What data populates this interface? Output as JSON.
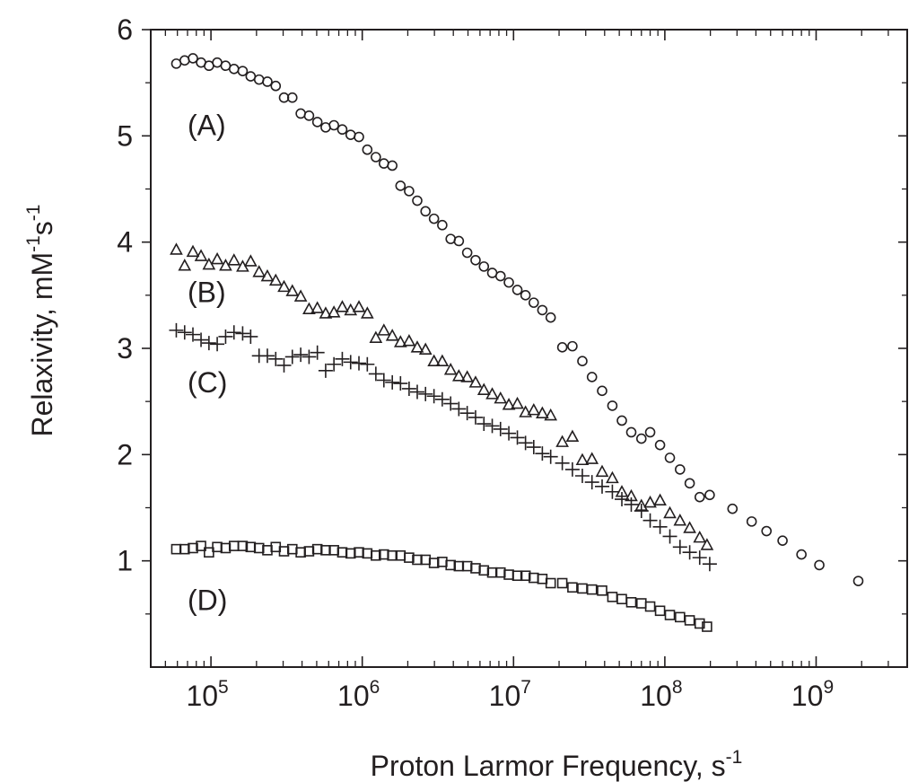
{
  "chart_data": {
    "type": "scatter",
    "x_scale": "log",
    "xlabel": "Proton Larmor Frequency, s",
    "xlabel_sup": "-1",
    "ylabel": "Relaxivity, mM",
    "ylabel_sup1": "-1",
    "ylabel_mid": "s",
    "ylabel_sup2": "-1",
    "xlim": [
      40000,
      4000000000
    ],
    "ylim": [
      0,
      6
    ],
    "x_ticks": [
      {
        "value": 100000,
        "base": "10",
        "exp": "5"
      },
      {
        "value": 1000000,
        "base": "10",
        "exp": "6"
      },
      {
        "value": 10000000,
        "base": "10",
        "exp": "7"
      },
      {
        "value": 100000000,
        "base": "10",
        "exp": "8"
      },
      {
        "value": 1000000000,
        "base": "10",
        "exp": "9"
      }
    ],
    "y_ticks": [
      {
        "value": 1,
        "label": "1"
      },
      {
        "value": 2,
        "label": "2"
      },
      {
        "value": 3,
        "label": "3"
      },
      {
        "value": 4,
        "label": "4"
      },
      {
        "value": 5,
        "label": "5"
      },
      {
        "value": 6,
        "label": "6"
      }
    ],
    "grid": false,
    "series": [
      {
        "name": "(A)",
        "marker": "circle",
        "label_at": [
          70000,
          5.1
        ],
        "points": [
          [
            59000,
            5.68
          ],
          [
            67000,
            5.71
          ],
          [
            76000,
            5.73
          ],
          [
            86000,
            5.69
          ],
          [
            97000,
            5.66
          ],
          [
            110000,
            5.69
          ],
          [
            125000,
            5.66
          ],
          [
            142000,
            5.63
          ],
          [
            162000,
            5.61
          ],
          [
            183000,
            5.56
          ],
          [
            208000,
            5.53
          ],
          [
            236000,
            5.51
          ],
          [
            268000,
            5.47
          ],
          [
            304000,
            5.36
          ],
          [
            345000,
            5.36
          ],
          [
            392000,
            5.21
          ],
          [
            445000,
            5.19
          ],
          [
            505000,
            5.13
          ],
          [
            573000,
            5.08
          ],
          [
            650000,
            5.1
          ],
          [
            738000,
            5.06
          ],
          [
            838000,
            5.01
          ],
          [
            951000,
            4.99
          ],
          [
            1080000,
            4.87
          ],
          [
            1230000,
            4.8
          ],
          [
            1390000,
            4.74
          ],
          [
            1580000,
            4.72
          ],
          [
            1790000,
            4.53
          ],
          [
            2040000,
            4.48
          ],
          [
            2310000,
            4.39
          ],
          [
            2620000,
            4.29
          ],
          [
            2980000,
            4.22
          ],
          [
            3380000,
            4.16
          ],
          [
            3840000,
            4.03
          ],
          [
            4350000,
            4.01
          ],
          [
            4940000,
            3.9
          ],
          [
            5610000,
            3.83
          ],
          [
            6370000,
            3.77
          ],
          [
            7230000,
            3.71
          ],
          [
            8200000,
            3.68
          ],
          [
            9310000,
            3.62
          ],
          [
            10600000,
            3.55
          ],
          [
            12000000,
            3.5
          ],
          [
            13600000,
            3.43
          ],
          [
            15500000,
            3.36
          ],
          [
            17600000,
            3.29
          ],
          [
            21000000,
            3.01
          ],
          [
            24500000,
            3.02
          ],
          [
            28500000,
            2.88
          ],
          [
            33000000,
            2.73
          ],
          [
            38500000,
            2.6
          ],
          [
            45000000,
            2.46
          ],
          [
            52000000,
            2.32
          ],
          [
            60000000,
            2.21
          ],
          [
            70000000,
            2.15
          ],
          [
            80000000,
            2.21
          ],
          [
            93000000,
            2.09
          ],
          [
            108000000,
            1.97
          ],
          [
            126000000,
            1.86
          ],
          [
            146000000,
            1.73
          ],
          [
            170000000,
            1.6
          ],
          [
            198000000,
            1.62
          ],
          [
            280000000,
            1.49
          ],
          [
            375000000,
            1.37
          ],
          [
            470000000,
            1.28
          ],
          [
            600000000,
            1.19
          ],
          [
            800000000,
            1.06
          ],
          [
            1050000000,
            0.96
          ],
          [
            1900000000,
            0.81
          ]
        ]
      },
      {
        "name": "(B)",
        "marker": "triangle",
        "label_at": [
          70000,
          3.53
        ],
        "points": [
          [
            59000,
            3.93
          ],
          [
            67000,
            3.78
          ],
          [
            76000,
            3.91
          ],
          [
            86000,
            3.87
          ],
          [
            97000,
            3.79
          ],
          [
            110000,
            3.84
          ],
          [
            125000,
            3.78
          ],
          [
            142000,
            3.83
          ],
          [
            162000,
            3.77
          ],
          [
            183000,
            3.82
          ],
          [
            208000,
            3.72
          ],
          [
            236000,
            3.68
          ],
          [
            268000,
            3.64
          ],
          [
            304000,
            3.58
          ],
          [
            345000,
            3.54
          ],
          [
            392000,
            3.49
          ],
          [
            445000,
            3.37
          ],
          [
            505000,
            3.38
          ],
          [
            573000,
            3.33
          ],
          [
            650000,
            3.34
          ],
          [
            738000,
            3.39
          ],
          [
            838000,
            3.36
          ],
          [
            951000,
            3.39
          ],
          [
            1080000,
            3.33
          ],
          [
            1230000,
            3.1
          ],
          [
            1390000,
            3.17
          ],
          [
            1580000,
            3.12
          ],
          [
            1790000,
            3.06
          ],
          [
            2040000,
            3.07
          ],
          [
            2310000,
            3.01
          ],
          [
            2620000,
            2.99
          ],
          [
            2980000,
            2.88
          ],
          [
            3380000,
            2.88
          ],
          [
            3840000,
            2.8
          ],
          [
            4350000,
            2.74
          ],
          [
            4940000,
            2.73
          ],
          [
            5610000,
            2.68
          ],
          [
            6370000,
            2.61
          ],
          [
            7230000,
            2.57
          ],
          [
            8200000,
            2.53
          ],
          [
            9310000,
            2.47
          ],
          [
            10600000,
            2.48
          ],
          [
            12000000,
            2.4
          ],
          [
            13600000,
            2.42
          ],
          [
            15500000,
            2.39
          ],
          [
            17600000,
            2.37
          ],
          [
            21000000,
            2.12
          ],
          [
            24500000,
            2.17
          ],
          [
            28500000,
            1.95
          ],
          [
            33000000,
            1.96
          ],
          [
            38500000,
            1.84
          ],
          [
            45000000,
            1.78
          ],
          [
            52000000,
            1.65
          ],
          [
            60000000,
            1.61
          ],
          [
            70000000,
            1.52
          ],
          [
            80000000,
            1.55
          ],
          [
            93000000,
            1.57
          ],
          [
            108000000,
            1.45
          ],
          [
            126000000,
            1.38
          ],
          [
            146000000,
            1.31
          ],
          [
            170000000,
            1.22
          ],
          [
            190000000,
            1.15
          ]
        ]
      },
      {
        "name": "(C)",
        "marker": "plus",
        "label_at": [
          70000,
          2.68
        ],
        "points": [
          [
            59000,
            3.17
          ],
          [
            67000,
            3.15
          ],
          [
            76000,
            3.13
          ],
          [
            86000,
            3.08
          ],
          [
            97000,
            3.05
          ],
          [
            110000,
            3.04
          ],
          [
            125000,
            3.11
          ],
          [
            142000,
            3.15
          ],
          [
            162000,
            3.14
          ],
          [
            183000,
            3.11
          ],
          [
            208000,
            2.93
          ],
          [
            236000,
            2.93
          ],
          [
            268000,
            2.9
          ],
          [
            304000,
            2.84
          ],
          [
            345000,
            2.92
          ],
          [
            392000,
            2.94
          ],
          [
            445000,
            2.92
          ],
          [
            505000,
            2.96
          ],
          [
            573000,
            2.79
          ],
          [
            650000,
            2.85
          ],
          [
            738000,
            2.9
          ],
          [
            838000,
            2.87
          ],
          [
            951000,
            2.86
          ],
          [
            1080000,
            2.85
          ],
          [
            1230000,
            2.76
          ],
          [
            1390000,
            2.7
          ],
          [
            1580000,
            2.68
          ],
          [
            1790000,
            2.67
          ],
          [
            2040000,
            2.62
          ],
          [
            2310000,
            2.59
          ],
          [
            2620000,
            2.57
          ],
          [
            2980000,
            2.55
          ],
          [
            3380000,
            2.52
          ],
          [
            3840000,
            2.48
          ],
          [
            4350000,
            2.43
          ],
          [
            4940000,
            2.39
          ],
          [
            5610000,
            2.35
          ],
          [
            6370000,
            2.29
          ],
          [
            7230000,
            2.27
          ],
          [
            8200000,
            2.24
          ],
          [
            9310000,
            2.2
          ],
          [
            10600000,
            2.16
          ],
          [
            12000000,
            2.11
          ],
          [
            13600000,
            2.07
          ],
          [
            15500000,
            2.01
          ],
          [
            17600000,
            1.98
          ],
          [
            21000000,
            1.92
          ],
          [
            24500000,
            1.86
          ],
          [
            28500000,
            1.8
          ],
          [
            33000000,
            1.74
          ],
          [
            38500000,
            1.7
          ],
          [
            45000000,
            1.65
          ],
          [
            52000000,
            1.58
          ],
          [
            60000000,
            1.53
          ],
          [
            70000000,
            1.47
          ],
          [
            80000000,
            1.38
          ],
          [
            93000000,
            1.32
          ],
          [
            108000000,
            1.23
          ],
          [
            126000000,
            1.13
          ],
          [
            146000000,
            1.08
          ],
          [
            170000000,
            1.03
          ],
          [
            198000000,
            0.97
          ]
        ]
      },
      {
        "name": "(D)",
        "marker": "square",
        "label_at": [
          70000,
          0.63
        ],
        "points": [
          [
            59000,
            1.11
          ],
          [
            67000,
            1.11
          ],
          [
            76000,
            1.12
          ],
          [
            86000,
            1.14
          ],
          [
            97000,
            1.08
          ],
          [
            110000,
            1.13
          ],
          [
            125000,
            1.12
          ],
          [
            142000,
            1.14
          ],
          [
            162000,
            1.14
          ],
          [
            183000,
            1.13
          ],
          [
            208000,
            1.12
          ],
          [
            236000,
            1.1
          ],
          [
            268000,
            1.13
          ],
          [
            304000,
            1.09
          ],
          [
            345000,
            1.11
          ],
          [
            392000,
            1.08
          ],
          [
            445000,
            1.09
          ],
          [
            505000,
            1.11
          ],
          [
            573000,
            1.1
          ],
          [
            650000,
            1.1
          ],
          [
            738000,
            1.08
          ],
          [
            838000,
            1.07
          ],
          [
            951000,
            1.08
          ],
          [
            1080000,
            1.07
          ],
          [
            1230000,
            1.05
          ],
          [
            1390000,
            1.06
          ],
          [
            1580000,
            1.05
          ],
          [
            1790000,
            1.05
          ],
          [
            2040000,
            1.03
          ],
          [
            2310000,
            1.01
          ],
          [
            2620000,
            1.01
          ],
          [
            2980000,
            0.98
          ],
          [
            3380000,
            0.99
          ],
          [
            3840000,
            0.96
          ],
          [
            4350000,
            0.95
          ],
          [
            4940000,
            0.95
          ],
          [
            5610000,
            0.93
          ],
          [
            6370000,
            0.91
          ],
          [
            7230000,
            0.89
          ],
          [
            8200000,
            0.89
          ],
          [
            9310000,
            0.87
          ],
          [
            10600000,
            0.86
          ],
          [
            12000000,
            0.86
          ],
          [
            13600000,
            0.84
          ],
          [
            15500000,
            0.83
          ],
          [
            17600000,
            0.79
          ],
          [
            21000000,
            0.79
          ],
          [
            24500000,
            0.75
          ],
          [
            28500000,
            0.74
          ],
          [
            33000000,
            0.73
          ],
          [
            38500000,
            0.72
          ],
          [
            45000000,
            0.66
          ],
          [
            52000000,
            0.64
          ],
          [
            60000000,
            0.61
          ],
          [
            70000000,
            0.6
          ],
          [
            80000000,
            0.57
          ],
          [
            93000000,
            0.53
          ],
          [
            108000000,
            0.49
          ],
          [
            126000000,
            0.47
          ],
          [
            146000000,
            0.44
          ],
          [
            170000000,
            0.41
          ],
          [
            190000000,
            0.38
          ]
        ]
      }
    ]
  }
}
